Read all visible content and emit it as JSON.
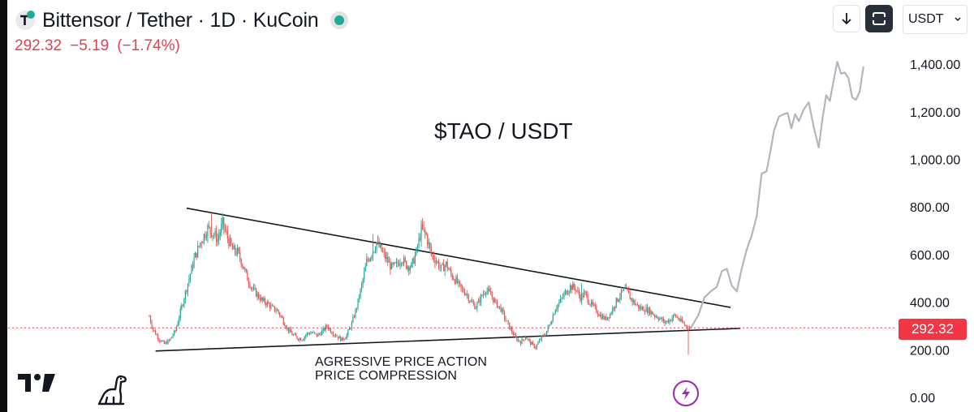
{
  "header": {
    "title": "Bittensor / Tether · 1D · KuCoin",
    "price": "292.32",
    "change": "−5.19",
    "change_pct": "(−1.74%)"
  },
  "toolbar": {
    "currency": "USDT"
  },
  "annotations": {
    "title": "$TAO / USDT",
    "note_line1": "AGRESSIVE PRICE ACTION",
    "note_line2": "PRICE COMPRESSION"
  },
  "price_tag": "292.32",
  "colors": {
    "up": "#26a69a",
    "down": "#ef5350",
    "projection": "#b2b5be",
    "trendline": "#131722",
    "last_price": "#f23645"
  },
  "chart_data": {
    "type": "candlestick",
    "y_axis": {
      "ticks": [
        0,
        200,
        400,
        600,
        800,
        1000,
        1200,
        1400
      ],
      "tick_labels": [
        "0.00",
        "200.00",
        "400.00",
        "600.00",
        "800.00",
        "1,000.00",
        "1,200.00",
        "1,400.00"
      ],
      "range": [
        0,
        1470
      ]
    },
    "last_price": 292.32,
    "price_path": [
      [
        0,
        340
      ],
      [
        3,
        285
      ],
      [
        8,
        245
      ],
      [
        12,
        225
      ],
      [
        16,
        238
      ],
      [
        21,
        280
      ],
      [
        26,
        380
      ],
      [
        31,
        480
      ],
      [
        36,
        580
      ],
      [
        41,
        650
      ],
      [
        47,
        710
      ],
      [
        51,
        690
      ],
      [
        55,
        665
      ],
      [
        59,
        730
      ],
      [
        63,
        670
      ],
      [
        67,
        620
      ],
      [
        71,
        610
      ],
      [
        75,
        560
      ],
      [
        79,
        500
      ],
      [
        83,
        455
      ],
      [
        87,
        430
      ],
      [
        91,
        405
      ],
      [
        95,
        395
      ],
      [
        99,
        375
      ],
      [
        103,
        365
      ],
      [
        107,
        330
      ],
      [
        111,
        290
      ],
      [
        115,
        265
      ],
      [
        119,
        250
      ],
      [
        123,
        245
      ],
      [
        127,
        268
      ],
      [
        131,
        272
      ],
      [
        135,
        260
      ],
      [
        139,
        275
      ],
      [
        143,
        300
      ],
      [
        147,
        275
      ],
      [
        151,
        258
      ],
      [
        155,
        242
      ],
      [
        159,
        262
      ],
      [
        163,
        310
      ],
      [
        167,
        380
      ],
      [
        171,
        470
      ],
      [
        175,
        570
      ],
      [
        179,
        605
      ],
      [
        183,
        650
      ],
      [
        187,
        615
      ],
      [
        191,
        580
      ],
      [
        195,
        545
      ],
      [
        199,
        555
      ],
      [
        203,
        585
      ],
      [
        207,
        555
      ],
      [
        211,
        550
      ],
      [
        215,
        610
      ],
      [
        219,
        705
      ],
      [
        223,
        680
      ],
      [
        227,
        600
      ],
      [
        231,
        575
      ],
      [
        235,
        540
      ],
      [
        239,
        560
      ],
      [
        243,
        515
      ],
      [
        247,
        490
      ],
      [
        251,
        455
      ],
      [
        255,
        440
      ],
      [
        259,
        400
      ],
      [
        263,
        380
      ],
      [
        267,
        420
      ],
      [
        271,
        455
      ],
      [
        275,
        430
      ],
      [
        279,
        395
      ],
      [
        283,
        372
      ],
      [
        287,
        325
      ],
      [
        291,
        285
      ],
      [
        295,
        248
      ],
      [
        299,
        232
      ],
      [
        303,
        255
      ],
      [
        307,
        228
      ],
      [
        311,
        210
      ],
      [
        315,
        245
      ],
      [
        319,
        268
      ],
      [
        323,
        315
      ],
      [
        327,
        375
      ],
      [
        331,
        405
      ],
      [
        335,
        440
      ],
      [
        339,
        465
      ],
      [
        343,
        460
      ],
      [
        347,
        420
      ],
      [
        351,
        435
      ],
      [
        355,
        395
      ],
      [
        359,
        372
      ],
      [
        363,
        345
      ],
      [
        367,
        330
      ],
      [
        371,
        350
      ],
      [
        375,
        395
      ],
      [
        379,
        430
      ],
      [
        383,
        455
      ],
      [
        387,
        420
      ],
      [
        391,
        395
      ],
      [
        395,
        375
      ],
      [
        399,
        372
      ],
      [
        403,
        362
      ],
      [
        407,
        345
      ],
      [
        411,
        332
      ],
      [
        415,
        315
      ],
      [
        419,
        325
      ],
      [
        423,
        345
      ],
      [
        427,
        325
      ],
      [
        431,
        305
      ],
      [
        435,
        292
      ]
    ],
    "spikes": [
      {
        "i": 50,
        "high": 775
      },
      {
        "i": 221,
        "high": 740
      },
      {
        "i": 180,
        "high": 685
      },
      {
        "i": 434,
        "low": 180
      },
      {
        "i": 348,
        "high": 480
      },
      {
        "i": 386,
        "high": 465
      }
    ],
    "projection_path": [
      [
        436,
        292
      ],
      [
        442,
        345
      ],
      [
        447,
        420
      ],
      [
        452,
        445
      ],
      [
        457,
        465
      ],
      [
        461,
        530
      ],
      [
        465,
        540
      ],
      [
        469,
        470
      ],
      [
        473,
        445
      ],
      [
        477,
        540
      ],
      [
        481,
        620
      ],
      [
        485,
        680
      ],
      [
        489,
        760
      ],
      [
        493,
        940
      ],
      [
        497,
        950
      ],
      [
        500,
        1030
      ],
      [
        503,
        1120
      ],
      [
        507,
        1180
      ],
      [
        511,
        1190
      ],
      [
        514,
        1195
      ],
      [
        517,
        1130
      ],
      [
        520,
        1190
      ],
      [
        523,
        1160
      ],
      [
        527,
        1210
      ],
      [
        531,
        1240
      ],
      [
        535,
        1135
      ],
      [
        539,
        1050
      ],
      [
        542,
        1170
      ],
      [
        545,
        1270
      ],
      [
        548,
        1245
      ],
      [
        551,
        1330
      ],
      [
        554,
        1410
      ],
      [
        557,
        1360
      ],
      [
        560,
        1365
      ],
      [
        563,
        1340
      ],
      [
        566,
        1260
      ],
      [
        569,
        1250
      ],
      [
        572,
        1285
      ],
      [
        575,
        1390
      ]
    ],
    "trendlines": [
      {
        "from": [
          30,
          795
        ],
        "to": [
          468,
          378
        ]
      },
      {
        "from": [
          5,
          195
        ],
        "to": [
          476,
          290
        ]
      }
    ]
  }
}
